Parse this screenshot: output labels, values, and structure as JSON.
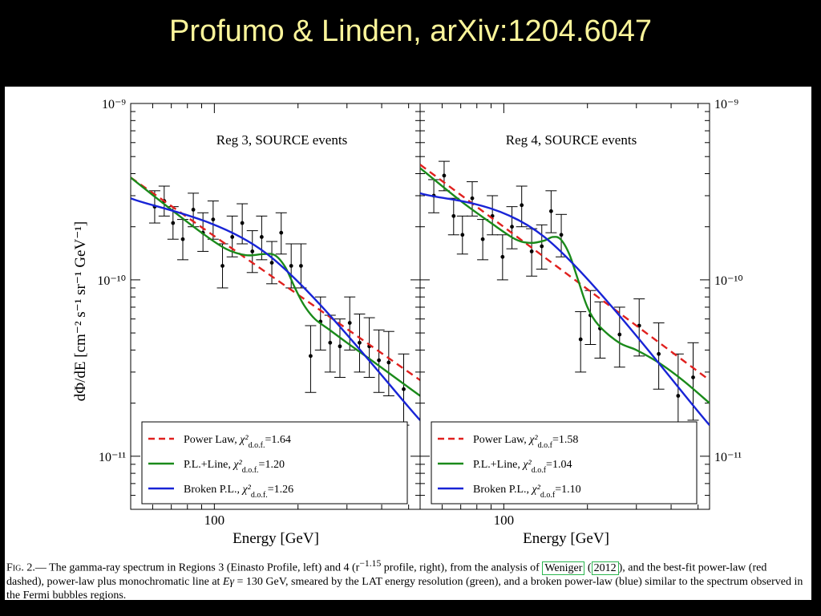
{
  "slide": {
    "title": "Profumo & Linden, arXiv:1204.6047"
  },
  "figure": {
    "ylabel": "dΦ/dE [cm⁻² s⁻¹ sr⁻¹ GeV⁻¹]",
    "ytick_left": [
      "10⁻⁹",
      "10⁻¹⁰",
      "10⁻¹¹"
    ],
    "ytick_right": [
      "10⁻⁹",
      "10⁻¹⁰",
      "10⁻¹¹"
    ],
    "xtick_label": "100",
    "xlabel": "Energy [GeV]"
  },
  "chart_data": [
    {
      "type": "scatter",
      "title": "Reg 3, SOURCE events",
      "xlabel": "Energy [GeV]",
      "ylabel": "dΦ/dE [cm⁻² s⁻¹ sr⁻¹ GeV⁻¹]",
      "x_scale": "log",
      "y_scale": "log",
      "xlim": [
        50,
        550
      ],
      "ylim": [
        5e-12,
        1e-09
      ],
      "legend_position": "bottom-left",
      "points": [
        {
          "x": 61,
          "y": 2.6e-10,
          "lo": 2.1e-10,
          "hi": 3.2e-10
        },
        {
          "x": 66,
          "y": 2.8e-10,
          "lo": 2.3e-10,
          "hi": 3.4e-10
        },
        {
          "x": 71,
          "y": 2.1e-10,
          "lo": 1.7e-10,
          "hi": 2.6e-10
        },
        {
          "x": 77,
          "y": 1.7e-10,
          "lo": 1.3e-10,
          "hi": 2.2e-10
        },
        {
          "x": 84,
          "y": 2.5e-10,
          "lo": 2e-10,
          "hi": 3.1e-10
        },
        {
          "x": 91,
          "y": 1.85e-10,
          "lo": 1.45e-10,
          "hi": 2.4e-10
        },
        {
          "x": 99,
          "y": 2.2e-10,
          "lo": 1.7e-10,
          "hi": 2.8e-10
        },
        {
          "x": 107,
          "y": 1.2e-10,
          "lo": 9e-11,
          "hi": 1.6e-10
        },
        {
          "x": 116,
          "y": 1.75e-10,
          "lo": 1.35e-10,
          "hi": 2.3e-10
        },
        {
          "x": 126,
          "y": 2.1e-10,
          "lo": 1.6e-10,
          "hi": 2.7e-10
        },
        {
          "x": 137,
          "y": 1.45e-10,
          "lo": 1.1e-10,
          "hi": 1.9e-10
        },
        {
          "x": 148,
          "y": 1.75e-10,
          "lo": 1.3e-10,
          "hi": 2.3e-10
        },
        {
          "x": 161,
          "y": 1.25e-10,
          "lo": 9.5e-11,
          "hi": 1.65e-10
        },
        {
          "x": 174,
          "y": 1.85e-10,
          "lo": 1.4e-10,
          "hi": 2.4e-10
        },
        {
          "x": 189,
          "y": 1.2e-10,
          "lo": 9e-11,
          "hi": 1.6e-10
        },
        {
          "x": 205,
          "y": 1.2e-10,
          "lo": 9e-11,
          "hi": 1.6e-10
        },
        {
          "x": 222,
          "y": 3.7e-11,
          "lo": 2.3e-11,
          "hi": 5.5e-11
        },
        {
          "x": 241,
          "y": 5.8e-11,
          "lo": 4e-11,
          "hi": 8e-11
        },
        {
          "x": 261,
          "y": 4.4e-11,
          "lo": 3e-11,
          "hi": 6.3e-11
        },
        {
          "x": 283,
          "y": 4.2e-11,
          "lo": 2.8e-11,
          "hi": 6e-11
        },
        {
          "x": 307,
          "y": 5.7e-11,
          "lo": 4e-11,
          "hi": 8e-11
        },
        {
          "x": 333,
          "y": 4.4e-11,
          "lo": 3e-11,
          "hi": 6.4e-11
        },
        {
          "x": 361,
          "y": 4.2e-11,
          "lo": 2.8e-11,
          "hi": 6.1e-11
        },
        {
          "x": 391,
          "y": 3.5e-11,
          "lo": 2.3e-11,
          "hi": 5.2e-11
        },
        {
          "x": 424,
          "y": 3.4e-11,
          "lo": 2.2e-11,
          "hi": 5.1e-11
        },
        {
          "x": 480,
          "y": 2.4e-11,
          "lo": 1.5e-11,
          "hi": 3.8e-11
        }
      ],
      "series": [
        {
          "name": "Power Law",
          "label_chi": "χ²",
          "label_sub": "d.o.f.",
          "label_val": "=1.64",
          "style": "dashed",
          "color": "#e0201e",
          "x": [
            50,
            550
          ],
          "y": [
            3.8e-10,
            2.7e-11
          ]
        },
        {
          "name": "P.L.+Line",
          "label_chi": "χ²",
          "label_sub": "d.o.f.",
          "label_val": "=1.20",
          "style": "solid",
          "color": "#1a8a1a",
          "x": [
            50,
            70,
            90,
            110,
            130,
            150,
            165,
            180,
            195,
            210,
            230,
            260,
            300,
            350,
            420,
            550
          ],
          "y": [
            3.8e-10,
            2.5e-10,
            1.85e-10,
            1.5e-10,
            1.38e-10,
            1.4e-10,
            1.38e-10,
            1.18e-10,
            9e-11,
            7.2e-11,
            6e-11,
            5.2e-11,
            4.4e-11,
            3.7e-11,
            3e-11,
            2.2e-11
          ]
        },
        {
          "name": "Broken P.L.",
          "label_chi": "χ²",
          "label_sub": "d.o.f.",
          "label_val": "=1.26",
          "style": "solid",
          "color": "#1824d6",
          "x": [
            50,
            155,
            550
          ],
          "y": [
            2.9e-10,
            1.4e-10,
            1.6e-11
          ]
        }
      ]
    },
    {
      "type": "scatter",
      "title": "Reg 4, SOURCE events",
      "xlabel": "Energy [GeV]",
      "ylabel": "dΦ/dE [cm⁻² s⁻¹ sr⁻¹ GeV⁻¹]",
      "x_scale": "log",
      "y_scale": "log",
      "xlim": [
        50,
        550
      ],
      "ylim": [
        5e-12,
        1e-09
      ],
      "legend_position": "bottom-left",
      "points": [
        {
          "x": 56,
          "y": 3e-10,
          "lo": 2.4e-10,
          "hi": 3.7e-10
        },
        {
          "x": 61,
          "y": 3.9e-10,
          "lo": 3.2e-10,
          "hi": 4.7e-10
        },
        {
          "x": 66,
          "y": 2.3e-10,
          "lo": 1.8e-10,
          "hi": 2.9e-10
        },
        {
          "x": 71,
          "y": 1.8e-10,
          "lo": 1.4e-10,
          "hi": 2.3e-10
        },
        {
          "x": 77,
          "y": 2.9e-10,
          "lo": 2.3e-10,
          "hi": 3.6e-10
        },
        {
          "x": 84,
          "y": 1.7e-10,
          "lo": 1.3e-10,
          "hi": 2.2e-10
        },
        {
          "x": 91,
          "y": 2.3e-10,
          "lo": 1.8e-10,
          "hi": 3e-10
        },
        {
          "x": 99,
          "y": 1.35e-10,
          "lo": 1e-10,
          "hi": 1.8e-10
        },
        {
          "x": 107,
          "y": 2e-10,
          "lo": 1.5e-10,
          "hi": 2.6e-10
        },
        {
          "x": 116,
          "y": 2.65e-10,
          "lo": 2e-10,
          "hi": 3.4e-10
        },
        {
          "x": 126,
          "y": 1.45e-10,
          "lo": 1.05e-10,
          "hi": 1.95e-10
        },
        {
          "x": 137,
          "y": 1.55e-10,
          "lo": 1.15e-10,
          "hi": 2.05e-10
        },
        {
          "x": 148,
          "y": 2.45e-10,
          "lo": 1.85e-10,
          "hi": 3.2e-10
        },
        {
          "x": 161,
          "y": 1.8e-10,
          "lo": 1.35e-10,
          "hi": 2.35e-10
        },
        {
          "x": 189,
          "y": 4.6e-11,
          "lo": 3e-11,
          "hi": 6.6e-11
        },
        {
          "x": 205,
          "y": 6.3e-11,
          "lo": 4.3e-11,
          "hi": 8.7e-11
        },
        {
          "x": 222,
          "y": 5.3e-11,
          "lo": 3.6e-11,
          "hi": 7.5e-11
        },
        {
          "x": 261,
          "y": 4.9e-11,
          "lo": 3.2e-11,
          "hi": 7e-11
        },
        {
          "x": 307,
          "y": 5.5e-11,
          "lo": 3.7e-11,
          "hi": 7.8e-11
        },
        {
          "x": 361,
          "y": 3.8e-11,
          "lo": 2.4e-11,
          "hi": 5.7e-11
        },
        {
          "x": 424,
          "y": 2.2e-11,
          "lo": 1e-11,
          "hi": 3.8e-11
        },
        {
          "x": 480,
          "y": 2.8e-11,
          "lo": 1.6e-11,
          "hi": 4.4e-11
        }
      ],
      "series": [
        {
          "name": "Power Law",
          "label_chi": "χ²",
          "label_sub": "d.o.f",
          "label_val": "=1.58",
          "style": "dashed",
          "color": "#e0201e",
          "x": [
            50,
            550
          ],
          "y": [
            4.5e-10,
            2.7e-11
          ]
        },
        {
          "name": "P.L.+Line",
          "label_chi": "χ²",
          "label_sub": "d.o.f",
          "label_val": "=1.04",
          "style": "solid",
          "color": "#1a8a1a",
          "x": [
            50,
            70,
            90,
            110,
            125,
            140,
            150,
            160,
            172,
            185,
            200,
            220,
            260,
            300,
            360,
            440,
            550
          ],
          "y": [
            4.3e-10,
            2.8e-10,
            2.1e-10,
            1.7e-10,
            1.62e-10,
            1.67e-10,
            1.75e-10,
            1.7e-10,
            1.4e-10,
            1e-10,
            7e-11,
            5.5e-11,
            4.4e-11,
            4e-11,
            3.4e-11,
            2.7e-11,
            2e-11
          ]
        },
        {
          "name": "Broken P.L.",
          "label_chi": "χ²",
          "label_sub": "d.o.f",
          "label_val": "=1.10",
          "style": "solid",
          "color": "#1824d6",
          "x": [
            50,
            140,
            550
          ],
          "y": [
            3.1e-10,
            1.75e-10,
            1.5e-11
          ]
        }
      ]
    }
  ],
  "caption": {
    "fig": "Fig. 2.",
    "text1": "— The gamma-ray spectrum in Regions 3 (Einasto Profile, left) and 4 (r",
    "exponent": "−1.15",
    "text2": " profile, right), from the analysis of ",
    "ref_author": "Weniger",
    "ref_year": "2012",
    "text3": ", and the best-fit power-law (red dashed), power-law plus monochromatic line at ",
    "egamma": "Eγ",
    "text4": " = 130 GeV, smeared by the LAT energy resolution (green), and a broken power-law (blue) similar to the spectrum observed in the Fermi bubbles regions."
  }
}
